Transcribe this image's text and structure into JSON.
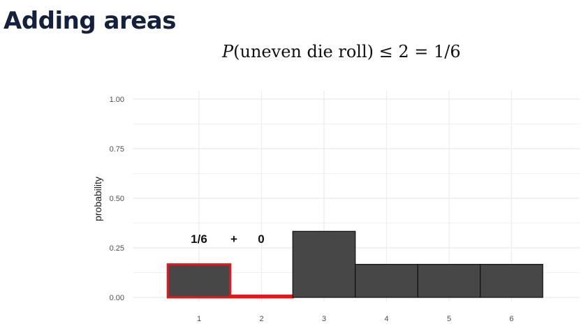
{
  "slide": {
    "title": "Adding areas",
    "formula": {
      "var": "P",
      "arg": "(uneven die roll)",
      "rest": " ≤ 2 = 1/6"
    }
  },
  "chart_data": {
    "type": "bar",
    "categories": [
      "1",
      "2",
      "3",
      "4",
      "5",
      "6"
    ],
    "values": [
      0.1667,
      0.0,
      0.3333,
      0.1667,
      0.1667,
      0.1667
    ],
    "highlighted": [
      "1",
      "2"
    ],
    "ylabel": "probability",
    "xlabel": "",
    "ylim": [
      0,
      1
    ],
    "yticks": [
      "0.00",
      "0.25",
      "0.50",
      "0.75",
      "1.00"
    ],
    "annotations": [
      "1/6",
      "+",
      "0"
    ],
    "grid": true,
    "colors": {
      "bar": "#474747",
      "highlight": "#e8161b",
      "grid": "#ebebeb"
    }
  }
}
